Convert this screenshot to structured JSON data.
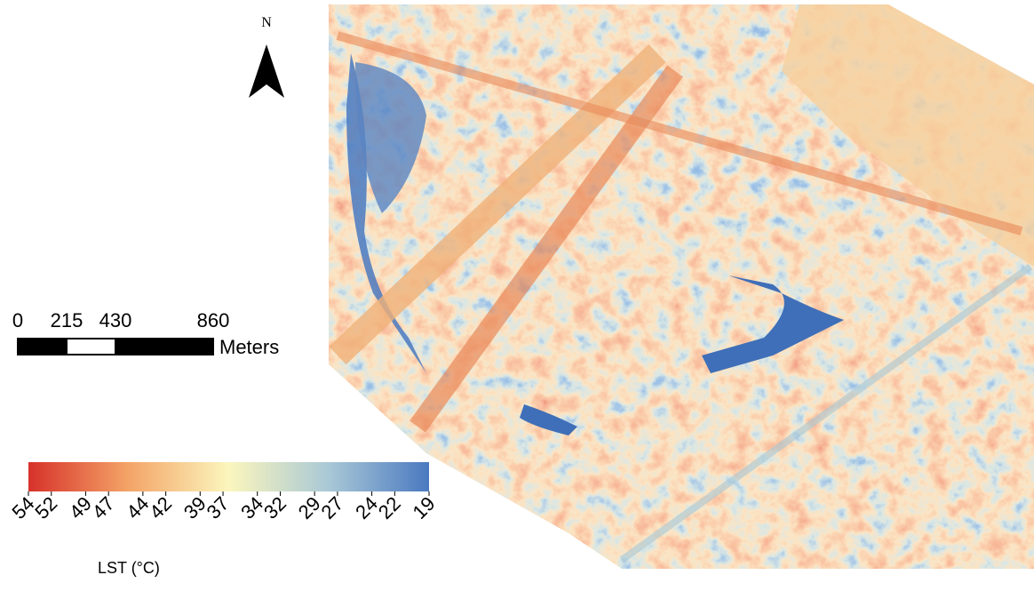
{
  "north_arrow": {
    "label": "N"
  },
  "scale_bar": {
    "ticks": [
      0,
      215,
      430,
      860
    ],
    "unit": "Meters"
  },
  "legend": {
    "title": "LST (°C)",
    "ticks": [
      54,
      52,
      49,
      47,
      44,
      42,
      39,
      37,
      34,
      32,
      29,
      27,
      24,
      22,
      19
    ],
    "colors": [
      "#d7312a",
      "#f4a467",
      "#fbf6bd",
      "#a9c8d6",
      "#4a79c0"
    ]
  }
}
